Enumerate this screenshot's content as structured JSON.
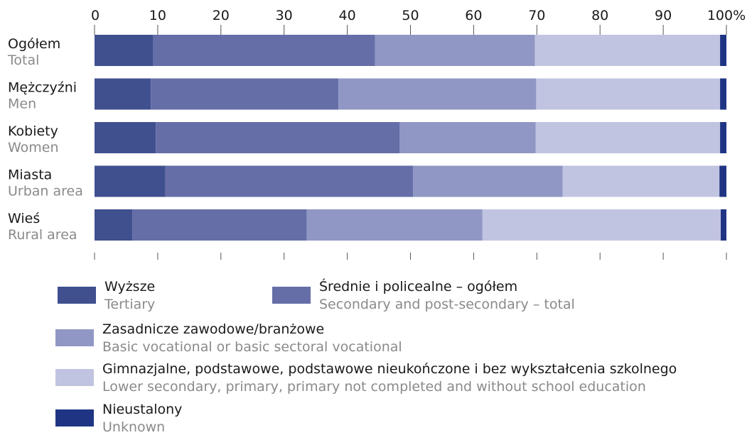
{
  "chart_data": {
    "type": "bar",
    "orientation": "horizontal",
    "stacked": true,
    "xlim": [
      0,
      100
    ],
    "ticks": [
      "0",
      "10",
      "20",
      "30",
      "40",
      "50",
      "60",
      "70",
      "80",
      "90",
      "100%"
    ],
    "grid": false,
    "legend_position": "bottom",
    "categories": [
      {
        "pl": "Ogółem",
        "en": "Total"
      },
      {
        "pl": "Mężczyźni",
        "en": "Men"
      },
      {
        "pl": "Kobiety",
        "en": "Women"
      },
      {
        "pl": "Miasta",
        "en": "Urban area"
      },
      {
        "pl": "Wieś",
        "en": "Rural area"
      }
    ],
    "series": [
      {
        "name": "Wyższe",
        "name_en": "Tertiary",
        "color": "#40508f",
        "values": [
          9.3,
          8.9,
          9.7,
          11.2,
          6.0
        ]
      },
      {
        "name": "Średnie i policealne – ogółem",
        "name_en": "Secondary and post-secondary – total",
        "color": "#666ea8",
        "values": [
          35.1,
          29.7,
          38.6,
          39.2,
          27.6
        ]
      },
      {
        "name": "Zasadnicze zawodowe/branżowe",
        "name_en": "Basic vocational or basic sectoral vocational",
        "color": "#9197c4",
        "values": [
          25.3,
          31.3,
          21.5,
          23.7,
          27.8
        ]
      },
      {
        "name": "Gimnazjalne, podstawowe, podstawowe nieukończone i bez wykształcenia szkolnego",
        "name_en": "Lower secondary, primary, primary not completed and without school education",
        "color": "#c1c4e1",
        "values": [
          29.3,
          29.1,
          29.2,
          24.8,
          37.7
        ]
      },
      {
        "name": "Nieustalony",
        "name_en": "Unknown",
        "color": "#1f3584",
        "values": [
          1.0,
          1.0,
          1.0,
          1.1,
          0.9
        ]
      }
    ]
  }
}
